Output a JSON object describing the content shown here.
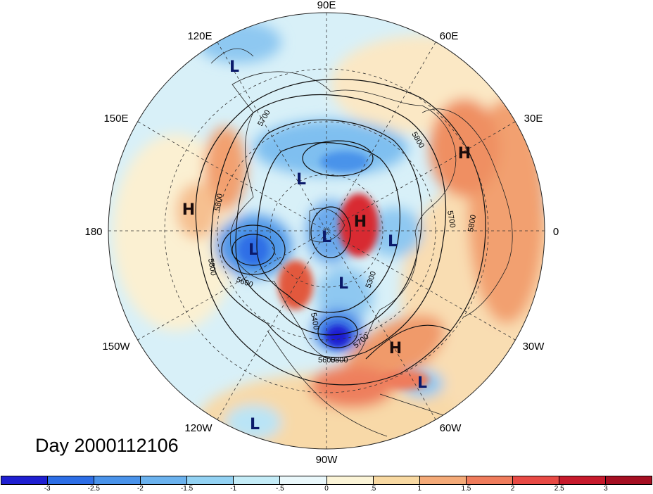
{
  "title": "Day 2000112106",
  "projection": "north-polar-stereographic",
  "longitude_labels": [
    "90E",
    "60E",
    "30E",
    "0",
    "30W",
    "60W",
    "90W",
    "120W",
    "150W",
    "180",
    "150E",
    "120E"
  ],
  "contour_labels": [
    "5700",
    "5800",
    "5800",
    "5800",
    "5600",
    "5700",
    "5800",
    "5300",
    "5400",
    "5700",
    "5600",
    "5800"
  ],
  "pressure_centers": [
    {
      "label": "L",
      "type": "low"
    },
    {
      "label": "L",
      "type": "low"
    },
    {
      "label": "L",
      "type": "low"
    },
    {
      "label": "L",
      "type": "low"
    },
    {
      "label": "L",
      "type": "low"
    },
    {
      "label": "L",
      "type": "low"
    },
    {
      "label": "L",
      "type": "low"
    },
    {
      "label": "L",
      "type": "low"
    },
    {
      "label": "H",
      "type": "high"
    },
    {
      "label": "H",
      "type": "high"
    },
    {
      "label": "H",
      "type": "high"
    },
    {
      "label": "H",
      "type": "high"
    }
  ],
  "colorbar": {
    "ticks": [
      "-3",
      "-2.5",
      "-2",
      "-1.5",
      "-1",
      "-.5",
      "0",
      ".5",
      "1",
      "1.5",
      "2",
      "2.5",
      "3"
    ],
    "colors": [
      "#1f1fd1",
      "#2d6ee6",
      "#4a93ea",
      "#6bb2ee",
      "#93d2f3",
      "#c4ecf7",
      "#eaf8fb",
      "#fbf4d7",
      "#f8d9a2",
      "#f4aa78",
      "#ef7c5c",
      "#e84a45",
      "#c71a2c",
      "#a50f22"
    ]
  },
  "colors": {
    "low_label": "#0b1a6b",
    "high_label": "#1a0b0b",
    "grid": "#333333",
    "background_field": "#eaf8fb"
  }
}
